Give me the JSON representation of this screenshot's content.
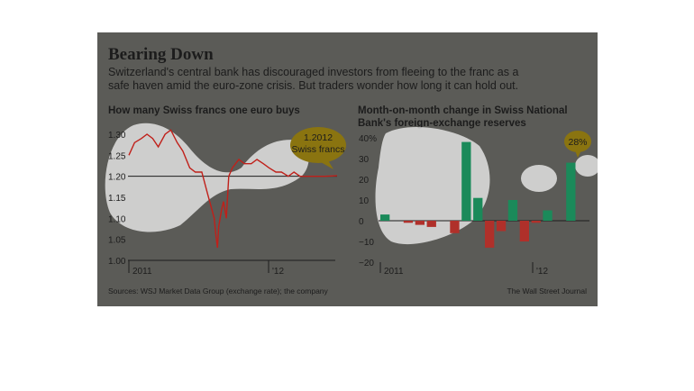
{
  "header": {
    "title": "Bearing Down",
    "subtitle": "Switzerland's central bank has discouraged investors from fleeing to the franc as a safe haven amid the euro-zone crisis. But traders wonder how long it can hold out."
  },
  "footer": {
    "sources": "Sources: WSJ Market Data Group (exchange rate); the company",
    "credit": "The Wall Street Journal"
  },
  "colors": {
    "background": "#5b5b57",
    "line_series": "#c0201a",
    "positive_bars": "#1b8a5a",
    "negative_bars": "#b0302a",
    "callout": "#8a7410",
    "highlight": "#ffffff"
  },
  "chart_data": [
    {
      "type": "line",
      "title": "How many Swiss francs one euro buys",
      "xlabel": "",
      "ylabel": "",
      "ylim": [
        1.0,
        1.3
      ],
      "y_ticks": [
        "1.30",
        "1.25",
        "1.20",
        "1.15",
        "1.10",
        "1.05",
        "1.00"
      ],
      "x_ticks": [
        "2011",
        "'12"
      ],
      "reference_line": 1.2,
      "annotation": {
        "line1": "1.2012",
        "line2": "Swiss francs"
      },
      "series": [
        {
          "points": [
            [
              "2011-01-01",
              1.25
            ],
            [
              "2011-01-15",
              1.28
            ],
            [
              "2011-02-01",
              1.29
            ],
            [
              "2011-02-15",
              1.3
            ],
            [
              "2011-03-01",
              1.29
            ],
            [
              "2011-03-15",
              1.27
            ],
            [
              "2011-04-01",
              1.3
            ],
            [
              "2011-04-15",
              1.31
            ],
            [
              "2011-05-01",
              1.28
            ],
            [
              "2011-05-15",
              1.26
            ],
            [
              "2011-06-01",
              1.22
            ],
            [
              "2011-06-15",
              1.21
            ],
            [
              "2011-07-01",
              1.21
            ],
            [
              "2011-07-15",
              1.16
            ],
            [
              "2011-08-01",
              1.1
            ],
            [
              "2011-08-05",
              1.06
            ],
            [
              "2011-08-09",
              1.03
            ],
            [
              "2011-08-12",
              1.08
            ],
            [
              "2011-08-19",
              1.12
            ],
            [
              "2011-08-24",
              1.14
            ],
            [
              "2011-08-31",
              1.1
            ],
            [
              "2011-09-06",
              1.2
            ],
            [
              "2011-09-15",
              1.22
            ],
            [
              "2011-10-01",
              1.24
            ],
            [
              "2011-10-15",
              1.23
            ],
            [
              "2011-11-01",
              1.23
            ],
            [
              "2011-11-15",
              1.24
            ],
            [
              "2011-12-01",
              1.23
            ],
            [
              "2011-12-15",
              1.22
            ],
            [
              "2012-01-01",
              1.21
            ],
            [
              "2012-01-15",
              1.21
            ],
            [
              "2012-02-01",
              1.2
            ],
            [
              "2012-02-15",
              1.21
            ],
            [
              "2012-03-01",
              1.2
            ],
            [
              "2012-04-01",
              1.2
            ],
            [
              "2012-05-01",
              1.2
            ],
            [
              "2012-06-01",
              1.2012
            ]
          ]
        }
      ]
    },
    {
      "type": "bar",
      "title": "Month-on-month change in Swiss National Bank's foreign-exchange reserves",
      "xlabel": "",
      "ylabel": "",
      "ylim": [
        -20,
        40
      ],
      "y_ticks": [
        "40%",
        "30",
        "20",
        "10",
        "0",
        "−10",
        "−20"
      ],
      "x_ticks": [
        "2011",
        "'12"
      ],
      "annotation": "28%",
      "categories": [
        "2011-01",
        "2011-02",
        "2011-03",
        "2011-04",
        "2011-05",
        "2011-06",
        "2011-07",
        "2011-08",
        "2011-09",
        "2011-10",
        "2011-11",
        "2011-12",
        "2012-01",
        "2012-02",
        "2012-03",
        "2012-04",
        "2012-05",
        "2012-06"
      ],
      "values": [
        3,
        0,
        -1,
        -2,
        -3,
        0,
        -6,
        38,
        11,
        -13,
        -5,
        10,
        -10,
        -1,
        5,
        0,
        28,
        0
      ]
    }
  ]
}
